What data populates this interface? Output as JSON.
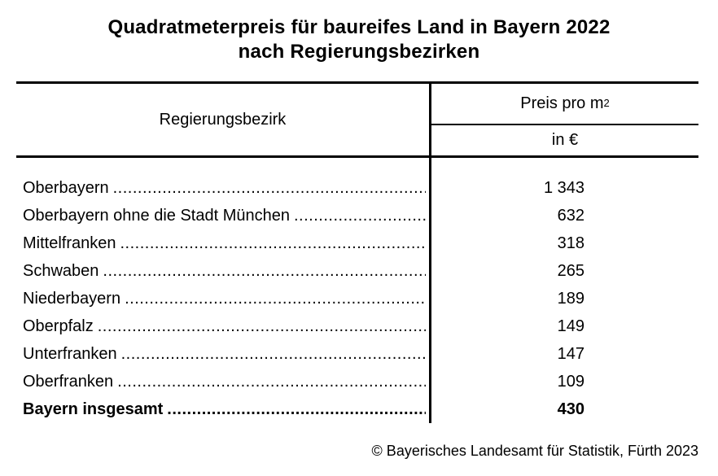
{
  "title": {
    "line1": "Quadratmeterpreis für baureifes Land in Bayern 2022",
    "line2": "nach Regierungsbezirken"
  },
  "table": {
    "col1_header": "Regierungsbezirk",
    "col2_header_base": "Preis pro m",
    "col2_header_sup": "2",
    "col2_subheader": "in €",
    "rows": [
      {
        "label": "Oberbayern",
        "value": "1 343",
        "bold": false
      },
      {
        "label": "Oberbayern ohne die Stadt München",
        "value": "632",
        "bold": false
      },
      {
        "label": "Mittelfranken",
        "value": "318",
        "bold": false
      },
      {
        "label": "Schwaben",
        "value": "265",
        "bold": false
      },
      {
        "label": "Niederbayern",
        "value": "189",
        "bold": false
      },
      {
        "label": "Oberpfalz",
        "value": "149",
        "bold": false
      },
      {
        "label": "Unterfranken",
        "value": "147",
        "bold": false
      },
      {
        "label": "Oberfranken",
        "value": "109",
        "bold": false
      },
      {
        "label": "Bayern insgesamt",
        "value": "430",
        "bold": true
      }
    ]
  },
  "footer": {
    "copyright": "© Bayerisches Landesamt für Statistik, Fürth 2023"
  },
  "colors": {
    "text": "#000000",
    "background": "#ffffff",
    "rule": "#000000"
  },
  "chart_data": {
    "type": "table",
    "title": "Quadratmeterpreis für baureifes Land in Bayern 2022 nach Regierungsbezirken",
    "columns": [
      "Regierungsbezirk",
      "Preis pro m² in €"
    ],
    "categories": [
      "Oberbayern",
      "Oberbayern ohne die Stadt München",
      "Mittelfranken",
      "Schwaben",
      "Niederbayern",
      "Oberpfalz",
      "Unterfranken",
      "Oberfranken",
      "Bayern insgesamt"
    ],
    "values": [
      1343,
      632,
      318,
      265,
      189,
      149,
      147,
      109,
      430
    ],
    "unit": "EUR per m²",
    "year": "2022",
    "source": "© Bayerisches Landesamt für Statistik, Fürth 2023"
  }
}
